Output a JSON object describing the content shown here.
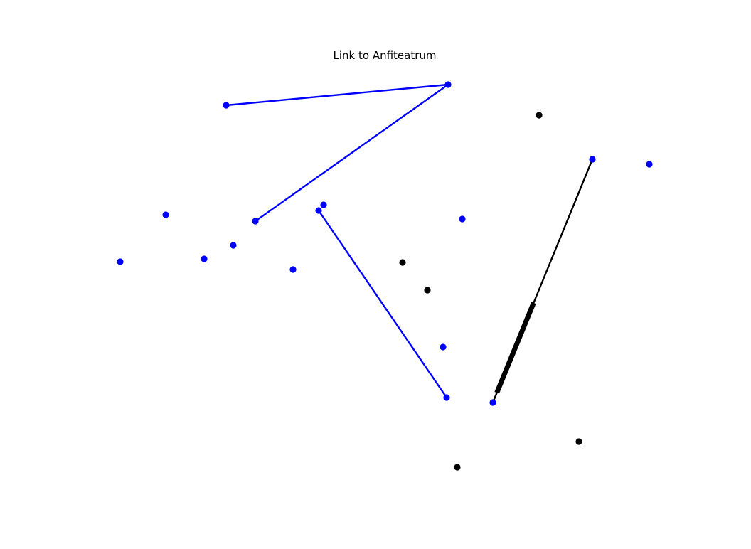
{
  "title": "Link to Anfiteatrum",
  "colors": {
    "blue": "#0000ff",
    "black": "#000000",
    "background": "#ffffff"
  },
  "nodes": [
    {
      "id": "n1",
      "color": "blue"
    },
    {
      "id": "n2",
      "color": "blue"
    },
    {
      "id": "n3",
      "color": "blue"
    },
    {
      "id": "n4",
      "color": "blue"
    },
    {
      "id": "n5",
      "color": "blue"
    },
    {
      "id": "n6",
      "color": "blue"
    },
    {
      "id": "n7",
      "color": "blue"
    },
    {
      "id": "n8",
      "color": "blue"
    },
    {
      "id": "n9",
      "color": "blue"
    },
    {
      "id": "n10",
      "color": "blue"
    },
    {
      "id": "n11",
      "color": "blue"
    },
    {
      "id": "n12",
      "color": "blue"
    },
    {
      "id": "n13",
      "color": "blue"
    },
    {
      "id": "n14",
      "color": "blue"
    },
    {
      "id": "n15",
      "color": "blue"
    },
    {
      "id": "n16",
      "color": "blue"
    },
    {
      "id": "n17",
      "color": "black"
    },
    {
      "id": "n18",
      "color": "black"
    },
    {
      "id": "n19",
      "color": "black"
    },
    {
      "id": "n20",
      "color": "black"
    },
    {
      "id": "n21",
      "color": "black"
    }
  ],
  "edges": [
    {
      "from": "n1",
      "to": "n2",
      "color": "blue"
    },
    {
      "from": "n2",
      "to": "n3",
      "color": "blue"
    },
    {
      "from": "n4",
      "to": "n5",
      "color": "blue"
    },
    {
      "from": "n6",
      "to": "n7",
      "color": "black",
      "style": "arrow"
    }
  ]
}
